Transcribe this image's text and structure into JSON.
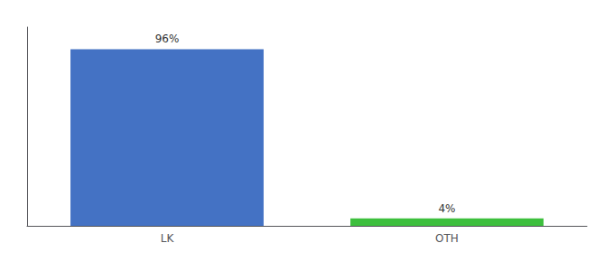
{
  "chart_data": {
    "type": "bar",
    "categories": [
      "LK",
      "OTH"
    ],
    "values": [
      96,
      4
    ],
    "value_labels": [
      "96%",
      "4%"
    ],
    "colors": [
      "#4472c4",
      "#3dbf3d"
    ],
    "ylim": [
      0,
      108
    ],
    "grid": false,
    "data_labels": true,
    "tick_labels": "x"
  }
}
